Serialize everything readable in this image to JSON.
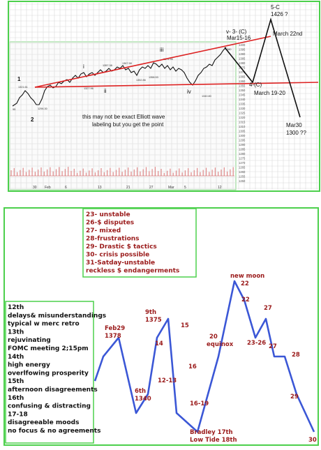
{
  "colors": {
    "frame_green": "#4cd04c",
    "trend_red": "#dd2222",
    "wave_blue": "#3b57d6",
    "label_dark_red": "#9a1a1a",
    "price_black": "#111111"
  },
  "top_chart": {
    "annotations": {
      "wave_1": "1",
      "wave_2": "2",
      "wave_i": "i",
      "wave_ii": "ii",
      "wave_iii": "iii",
      "wave_iv": "iv",
      "wave_v": "v- 3- (C)",
      "wave_v_date": "Mar15-16",
      "wave_4c": "4-(C)",
      "wave_4c_date": "March 19-20",
      "wave_5c": "5-C",
      "wave_5c_value": "1426 ?",
      "wave_5c_date": "March 22nd",
      "target_date": "Mar30",
      "target_value": "1300 ??",
      "note_line1": "this may not be exact Elliott wave",
      "note_line2": "labeling but you get the point"
    },
    "x_labels": [
      "30",
      "Feb",
      "6",
      "13",
      "21",
      "27",
      "Mar",
      "5",
      "12"
    ],
    "y_ticks": [
      "1400",
      "1395",
      "1390",
      "1385",
      "1380",
      "1375",
      "1370",
      "1365",
      "1360",
      "1355",
      "1350",
      "1345",
      "1340",
      "1335",
      "1330",
      "1325",
      "1320",
      "1315",
      "1310",
      "1305",
      "1300",
      "1295",
      "1290",
      "1285",
      "1280",
      "1275",
      "1270",
      "1265",
      "1260",
      "1255",
      "1250"
    ]
  },
  "chart_data": {
    "type": "line",
    "title": "",
    "xlabel": "",
    "ylabel": "",
    "categories": [
      "Feb29",
      "6th",
      "9th",
      "12-13",
      "14",
      "15",
      "16",
      "16-19",
      "20",
      "22",
      "22",
      "23-26",
      "27",
      "27",
      "28",
      "29",
      "30"
    ],
    "series": [
      {
        "name": "",
        "values": [
          4,
          5,
          1,
          2,
          5,
          6,
          1,
          0,
          4,
          8,
          7,
          5,
          6,
          4,
          4,
          2,
          0
        ]
      }
    ],
    "labels": [
      {
        "key": "feb29",
        "text": "Feb29",
        "text2": "1378"
      },
      {
        "key": "sixth",
        "text": "6th",
        "text2": "1340"
      },
      {
        "key": "ninth",
        "text": "9th",
        "text2": "1375"
      },
      {
        "key": "d1213",
        "text": "12-13"
      },
      {
        "key": "d14",
        "text": "14"
      },
      {
        "key": "d15",
        "text": "15"
      },
      {
        "key": "d16",
        "text": "16"
      },
      {
        "key": "d1619",
        "text": "16-19"
      },
      {
        "key": "d20",
        "text": "20",
        "text2": "equinox"
      },
      {
        "key": "newmoon",
        "text": "new moon",
        "text2": "22"
      },
      {
        "key": "d22b",
        "text": "22"
      },
      {
        "key": "d2326",
        "text": "23-26"
      },
      {
        "key": "d27a",
        "text": "27"
      },
      {
        "key": "d27b",
        "text": "27"
      },
      {
        "key": "d28",
        "text": "28"
      },
      {
        "key": "d29",
        "text": "29"
      },
      {
        "key": "d30",
        "text": "30"
      }
    ],
    "bradley": [
      "Bradley 17th",
      "Low Tide 18th"
    ]
  },
  "calendar_notes": [
    "23- unstable",
    "26-$ disputes",
    "27- mixed",
    "28-frustrations",
    "29- Drastic $ tactics",
    "30- crisis possible",
    "31-Satday-unstable",
    "reckless $ endangerments"
  ],
  "left_notes": [
    "12th",
    "delays& misunderstandings",
    "typical w merc retro",
    "13th",
    "rejuvinating",
    "FOMC meeting 2;15pm",
    "14th",
    "high energy",
    "overlfowing prosperity",
    "15th",
    "afternoon disagreements",
    "16th",
    "confusing & distracting",
    "17-18",
    "disagreeable moods",
    "no focus & no agreements"
  ]
}
